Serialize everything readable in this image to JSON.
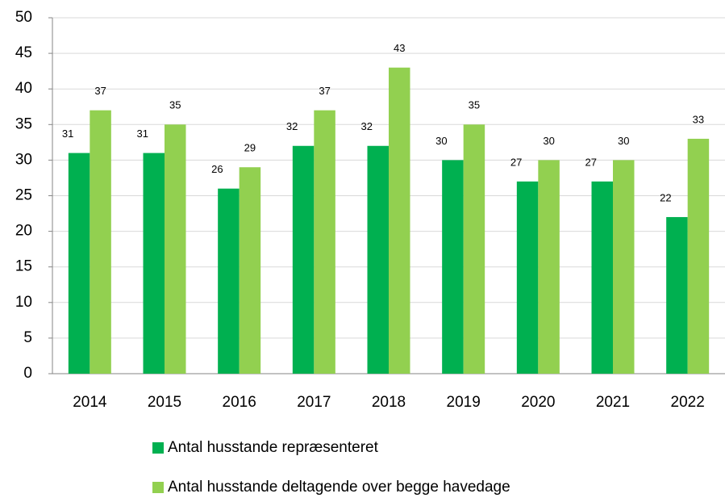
{
  "chart_data": {
    "type": "bar",
    "categories": [
      "2014",
      "2015",
      "2016",
      "2017",
      "2018",
      "2019",
      "2020",
      "2021",
      "2022"
    ],
    "series": [
      {
        "name": "Antal husstande repræsenteret",
        "color": "#00b050",
        "values": [
          31,
          31,
          26,
          32,
          32,
          30,
          27,
          27,
          22
        ]
      },
      {
        "name": "Antal husstande deltagende over begge havedage",
        "color": "#92d050",
        "values": [
          37,
          35,
          29,
          37,
          43,
          35,
          30,
          30,
          33
        ]
      }
    ],
    "ylim": [
      0,
      50
    ],
    "yticks": [
      0,
      5,
      10,
      15,
      20,
      25,
      30,
      35,
      40,
      45,
      50
    ],
    "grid": true,
    "legend": "bottom",
    "data_labels": true
  }
}
